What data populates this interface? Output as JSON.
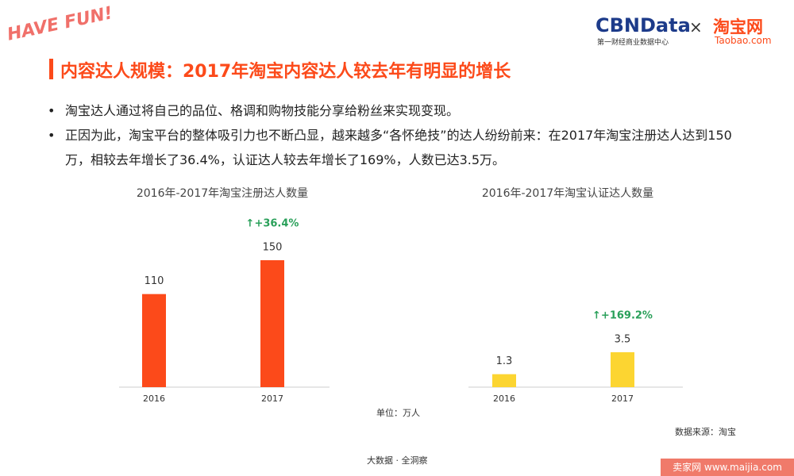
{
  "header": {
    "badge": "HAVE FUN!",
    "brand": "CBNData",
    "brand_sub": "第一财经商业数据中心",
    "times": "×",
    "partner": "淘宝网",
    "partner_url": "Taobao.com"
  },
  "title": "内容达人规模：2017年淘宝内容达人较去年有明显的增长",
  "bullets": [
    "淘宝达人通过将自己的品位、格调和购物技能分享给粉丝来实现变现。",
    "正因为此，淘宝平台的整体吸引力也不断凸显，越来越多“各怀绝技”的达人纷纷前来：在2017年淘宝注册达人达到150万，相较去年增长了36.4%，认证达人较去年增长了169%，人数已达3.5万。"
  ],
  "chart_data": [
    {
      "type": "bar",
      "title": "2016年-2017年淘宝注册达人数量",
      "categories": [
        "2016",
        "2017"
      ],
      "values": [
        110,
        150
      ],
      "color": "#fc4a1a",
      "annotation": "↑+36.4%"
    },
    {
      "type": "bar",
      "title": "2016年-2017年淘宝认证达人数量",
      "categories": [
        "2016",
        "2017"
      ],
      "values": [
        1.3,
        3.5
      ],
      "color": "#fcd531",
      "annotation": "↑+169.2%"
    }
  ],
  "unit": "单位：万人",
  "source": "数据来源：淘宝",
  "footer": "大数据 · 全洞察",
  "watermark": "卖家网 www.maijia.com"
}
